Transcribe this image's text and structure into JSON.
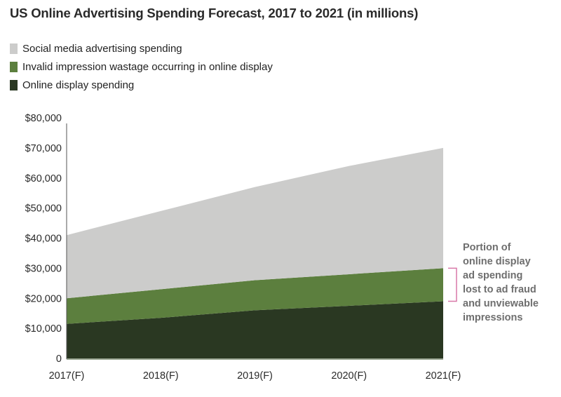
{
  "chart_data": {
    "type": "area",
    "stacked": true,
    "title": "US Online Advertising Spending Forecast, 2017 to 2021 (in millions)",
    "xlabel": "",
    "ylabel": "",
    "categories": [
      "2017(F)",
      "2018(F)",
      "2019(F)",
      "2020(F)",
      "2021(F)"
    ],
    "ylim": [
      0,
      80000
    ],
    "yticks": [
      0,
      10000,
      20000,
      30000,
      40000,
      50000,
      60000,
      70000,
      80000
    ],
    "ytick_labels": [
      "0",
      "$10,000",
      "$20,000",
      "$30,000",
      "$40,000",
      "$50,000",
      "$60,000",
      "$70,000",
      "$80,000"
    ],
    "grid": false,
    "legend_position": "top-left",
    "series": [
      {
        "name": "Online display spending",
        "color": "#2a3822",
        "values": [
          11500,
          13500,
          16000,
          17500,
          19000
        ]
      },
      {
        "name": "Invalid impression wastage occurring in online display",
        "color": "#5c7f3e",
        "values": [
          8500,
          9500,
          10000,
          10500,
          11000
        ]
      },
      {
        "name": "Social media advertising spending",
        "color": "#cccccb",
        "values": [
          21000,
          26000,
          31000,
          36000,
          40000
        ]
      }
    ],
    "cumulative_top": [
      41000,
      49000,
      57000,
      64000,
      70000
    ],
    "annotation": {
      "text": "Portion of online display ad spending lost to ad fraud and unviewable impressions",
      "lines": [
        "Portion of",
        "online display",
        "ad spending",
        "lost to ad fraud",
        "and unviewable",
        "impressions"
      ],
      "bracket_color": "#d878a8",
      "refers_to": "Invalid impression wastage occurring in online display"
    }
  },
  "legend": [
    {
      "label": "Social media advertising spending",
      "color": "#cccccb"
    },
    {
      "label": "Invalid impression wastage occurring in online display",
      "color": "#5c7f3e"
    },
    {
      "label": "Online display spending",
      "color": "#2a3822"
    }
  ]
}
